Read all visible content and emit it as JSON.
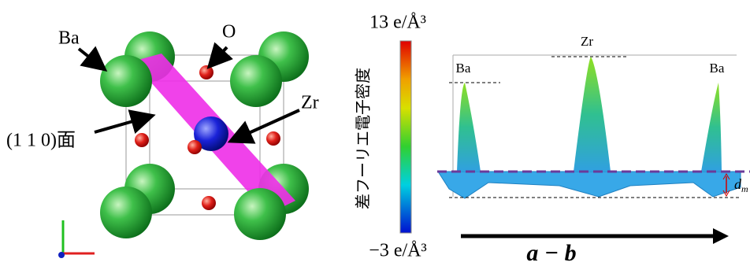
{
  "crystal": {
    "labels": {
      "ba": "Ba",
      "o": "O",
      "zr": "Zr",
      "plane": "(1 1 0)面"
    }
  },
  "colorbar": {
    "max_label": "13 e/Å³",
    "min_label": "−3 e/Å³",
    "title": "差フーリエ電子密度"
  },
  "surface": {
    "peak_labels": [
      "Ba",
      "Zr",
      "Ba"
    ],
    "depth_label": "d",
    "depth_subscript": "m",
    "direction_label": "a − b"
  }
}
